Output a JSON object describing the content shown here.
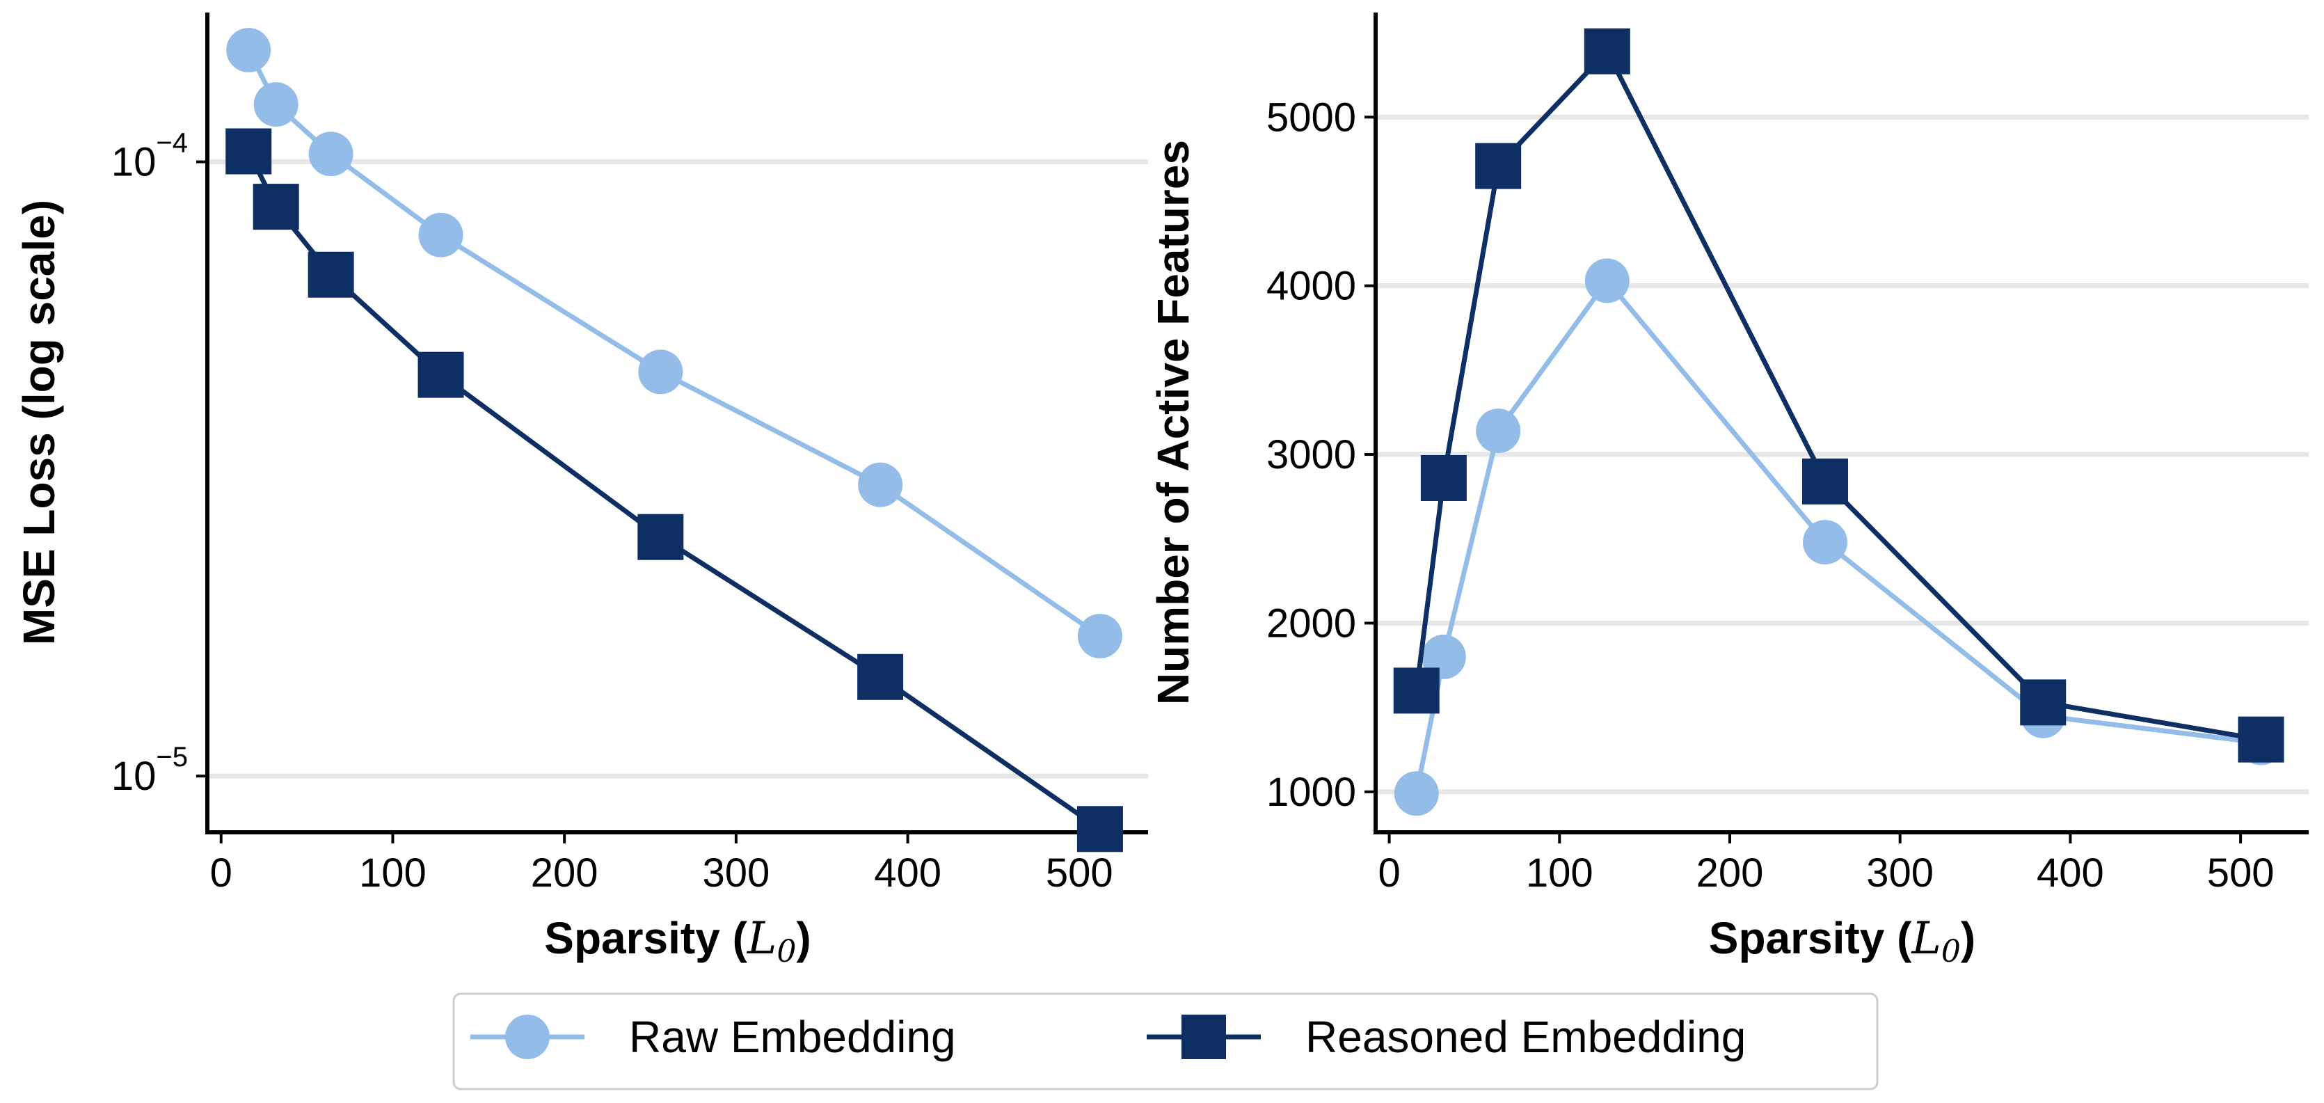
{
  "chart_data": [
    {
      "type": "line",
      "xlabel_main": "Sparsity (",
      "xlabel_var": "L",
      "xlabel_sub": "0",
      "xlabel_close": ")",
      "ylabel": "MSE Loss (log scale)",
      "yscale": "log",
      "xlim": [
        -8,
        540
      ],
      "ylim": [
        8.1e-06,
        0.000175
      ],
      "xticks": [
        0,
        100,
        200,
        300,
        400,
        500
      ],
      "xtick_labels": [
        "0",
        "100",
        "200",
        "300",
        "400",
        "500"
      ],
      "yticks": [
        1e-05,
        0.0001
      ],
      "ytick_labels": [
        {
          "base": "10",
          "exp": "−5"
        },
        {
          "base": "10",
          "exp": "−4"
        }
      ],
      "grid": "y-major",
      "series": [
        {
          "name": "Raw Embedding",
          "color": "#93bde8",
          "marker": "circle",
          "x": [
            16,
            32,
            64,
            128,
            256,
            384,
            512
          ],
          "y": [
            0.000152,
            0.000124,
            0.000103,
            7.6e-05,
            4.55e-05,
            2.98e-05,
            1.69e-05
          ]
        },
        {
          "name": "Reasoned Embedding",
          "color": "#0e2f64",
          "marker": "square",
          "x": [
            16,
            32,
            64,
            128,
            256,
            384,
            512
          ],
          "y": [
            0.000104,
            8.45e-05,
            6.55e-05,
            4.5e-05,
            2.45e-05,
            1.45e-05,
            8.2e-06
          ]
        }
      ]
    },
    {
      "type": "line",
      "xlabel_main": "Sparsity (",
      "xlabel_var": "L",
      "xlabel_sub": "0",
      "xlabel_close": ")",
      "ylabel": "Number of Active Features",
      "yscale": "linear",
      "xlim": [
        -8,
        540
      ],
      "ylim": [
        760,
        5620
      ],
      "xticks": [
        0,
        100,
        200,
        300,
        400,
        500
      ],
      "xtick_labels": [
        "0",
        "100",
        "200",
        "300",
        "400",
        "500"
      ],
      "yticks": [
        1000,
        2000,
        3000,
        4000,
        5000
      ],
      "ytick_labels": [
        "1000",
        "2000",
        "3000",
        "4000",
        "5000"
      ],
      "grid": "y-major",
      "series": [
        {
          "name": "Raw Embedding",
          "color": "#93bde8",
          "marker": "circle",
          "x": [
            16,
            32,
            64,
            128,
            256,
            384,
            512
          ],
          "y": [
            990,
            1800,
            3140,
            4030,
            2480,
            1450,
            1290
          ]
        },
        {
          "name": "Reasoned Embedding",
          "color": "#0e2f64",
          "marker": "square",
          "x": [
            16,
            32,
            64,
            128,
            256,
            384,
            512
          ],
          "y": [
            1600,
            2860,
            4710,
            5390,
            2840,
            1530,
            1310
          ]
        }
      ]
    }
  ],
  "legend": {
    "placement": "bottom-center",
    "items": [
      {
        "label": "Raw Embedding",
        "color": "#93bde8",
        "marker": "circle"
      },
      {
        "label": "Reasoned Embedding",
        "color": "#0e2f64",
        "marker": "square"
      }
    ]
  }
}
